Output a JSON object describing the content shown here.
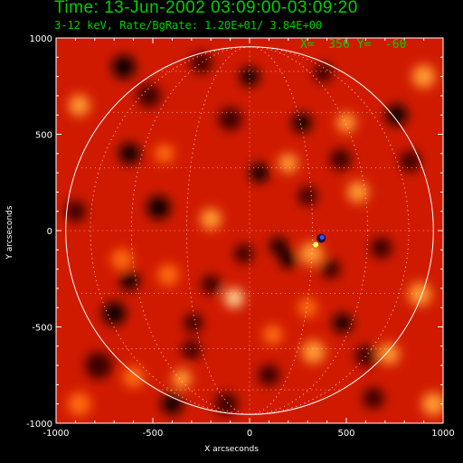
{
  "chart_data": {
    "type": "heatmap",
    "title": "Time: 13-Jun-2002 03:09:00-03:09:20",
    "subtitle": "3-12 keV, Rate/BgRate:  1.20E+01/  3.84E+00",
    "xlabel": "X arcseconds",
    "ylabel": "Y arcseconds",
    "xlim": [
      -1000,
      1000
    ],
    "ylim": [
      -1000,
      1000
    ],
    "xticks": [
      -1000,
      -500,
      0,
      500,
      1000
    ],
    "yticks": [
      -1000,
      -500,
      0,
      500,
      1000
    ],
    "cursor": {
      "label": "X=  356 Y=  -60",
      "x": 356,
      "y": -60
    },
    "solar_radius": 950,
    "grid_lines": "heliographic, dotted",
    "colormap": "red temperature",
    "colors": {
      "text": "#00d000",
      "axes": "#ffffff",
      "limb": "#ffffff"
    },
    "source": {
      "x": 370,
      "y": -40
    },
    "blobs": [
      {
        "x": -880,
        "y": 650,
        "r": 55,
        "v": 0.85
      },
      {
        "x": -780,
        "y": -700,
        "r": 70,
        "v": 0.2
      },
      {
        "x": -700,
        "y": -430,
        "r": 60,
        "v": 0.15
      },
      {
        "x": -620,
        "y": 400,
        "r": 55,
        "v": 0.1
      },
      {
        "x": -660,
        "y": -150,
        "r": 55,
        "v": 0.75
      },
      {
        "x": -520,
        "y": 700,
        "r": 60,
        "v": 0.2
      },
      {
        "x": -470,
        "y": 120,
        "r": 60,
        "v": 0.15
      },
      {
        "x": -420,
        "y": -230,
        "r": 55,
        "v": 0.7
      },
      {
        "x": -400,
        "y": -900,
        "r": 55,
        "v": 0.15
      },
      {
        "x": -650,
        "y": 850,
        "r": 60,
        "v": 0.15
      },
      {
        "x": -620,
        "y": -260,
        "r": 50,
        "v": 0.15
      },
      {
        "x": -600,
        "y": -760,
        "r": 55,
        "v": 0.8
      },
      {
        "x": -440,
        "y": 400,
        "r": 50,
        "v": 0.8
      },
      {
        "x": -350,
        "y": -770,
        "r": 50,
        "v": 0.85
      },
      {
        "x": -290,
        "y": -480,
        "r": 50,
        "v": 0.2
      },
      {
        "x": -250,
        "y": 870,
        "r": 55,
        "v": 0.2
      },
      {
        "x": -200,
        "y": 60,
        "r": 55,
        "v": 0.9
      },
      {
        "x": -200,
        "y": -280,
        "r": 50,
        "v": 0.2
      },
      {
        "x": -100,
        "y": 580,
        "r": 60,
        "v": 0.25
      },
      {
        "x": -80,
        "y": -350,
        "r": 50,
        "v": 0.95
      },
      {
        "x": -30,
        "y": -120,
        "r": 50,
        "v": 0.2
      },
      {
        "x": 0,
        "y": 800,
        "r": 50,
        "v": 0.15
      },
      {
        "x": 50,
        "y": 300,
        "r": 50,
        "v": 0.1
      },
      {
        "x": 100,
        "y": -750,
        "r": 55,
        "v": 0.25
      },
      {
        "x": 120,
        "y": -540,
        "r": 50,
        "v": 0.8
      },
      {
        "x": 150,
        "y": -80,
        "r": 45,
        "v": 0.15
      },
      {
        "x": 200,
        "y": 350,
        "r": 50,
        "v": 0.85
      },
      {
        "x": 200,
        "y": -150,
        "r": 45,
        "v": 0.15
      },
      {
        "x": 270,
        "y": 560,
        "r": 50,
        "v": 0.1
      },
      {
        "x": 300,
        "y": 180,
        "r": 50,
        "v": 0.2
      },
      {
        "x": 300,
        "y": -400,
        "r": 50,
        "v": 0.8
      },
      {
        "x": 320,
        "y": -120,
        "r": 60,
        "v": 0.85
      },
      {
        "x": 330,
        "y": -630,
        "r": 60,
        "v": 0.9
      },
      {
        "x": 380,
        "y": 820,
        "r": 50,
        "v": 0.2
      },
      {
        "x": 420,
        "y": -200,
        "r": 50,
        "v": 0.2
      },
      {
        "x": 470,
        "y": 370,
        "r": 55,
        "v": 0.25
      },
      {
        "x": 480,
        "y": -480,
        "r": 50,
        "v": 0.15
      },
      {
        "x": 500,
        "y": 560,
        "r": 50,
        "v": 0.85
      },
      {
        "x": 560,
        "y": 200,
        "r": 55,
        "v": 0.9
      },
      {
        "x": 600,
        "y": -650,
        "r": 55,
        "v": 0.2
      },
      {
        "x": 680,
        "y": -90,
        "r": 55,
        "v": 0.2
      },
      {
        "x": 720,
        "y": -640,
        "r": 55,
        "v": 0.85
      },
      {
        "x": 760,
        "y": 600,
        "r": 55,
        "v": 0.15
      },
      {
        "x": 830,
        "y": 360,
        "r": 55,
        "v": 0.2
      },
      {
        "x": 880,
        "y": -330,
        "r": 60,
        "v": 0.9
      },
      {
        "x": 900,
        "y": 800,
        "r": 60,
        "v": 0.9
      },
      {
        "x": -880,
        "y": -900,
        "r": 60,
        "v": 0.8
      },
      {
        "x": 950,
        "y": -900,
        "r": 60,
        "v": 0.85
      },
      {
        "x": -120,
        "y": -900,
        "r": 60,
        "v": 0.2
      },
      {
        "x": -900,
        "y": 100,
        "r": 55,
        "v": 0.2
      },
      {
        "x": -300,
        "y": -620,
        "r": 50,
        "v": 0.2
      },
      {
        "x": 640,
        "y": -870,
        "r": 55,
        "v": 0.2
      }
    ]
  }
}
